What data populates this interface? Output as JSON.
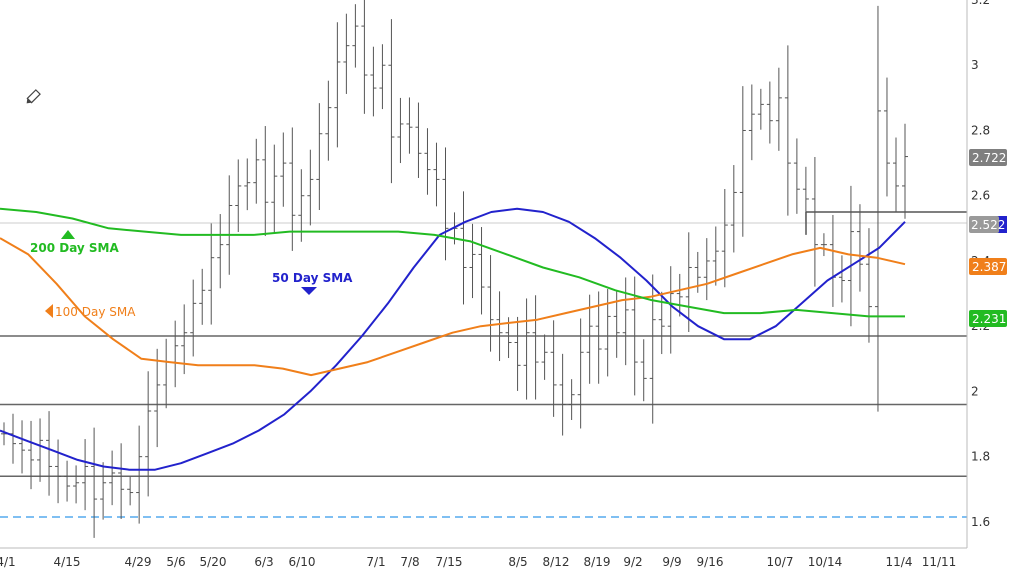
{
  "chart_data": {
    "type": "line",
    "title": "",
    "xlabel": "",
    "ylabel": "",
    "ylim": [
      1.52,
      3.2
    ],
    "y_ticks": [
      "1.6",
      "1.8",
      "2",
      "2.2",
      "2.4",
      "2.6",
      "2.8",
      "3",
      "3.2"
    ],
    "x_ticks": [
      "4/1",
      "4/15",
      "4/29",
      "5/6",
      "5/20",
      "6/3",
      "6/10",
      "7/1",
      "7/8",
      "7/15",
      "8/5",
      "8/12",
      "8/19",
      "9/2",
      "9/9",
      "9/16",
      "10/7",
      "10/14",
      "11/4",
      "11/11"
    ],
    "grid": false,
    "price_bars": {
      "style": "OHLC",
      "closes": [
        1.87,
        1.84,
        1.82,
        1.79,
        1.85,
        1.77,
        1.74,
        1.71,
        1.72,
        1.77,
        1.67,
        1.72,
        1.75,
        1.7,
        1.69,
        1.8,
        1.94,
        2.02,
        2.09,
        2.14,
        2.18,
        2.27,
        2.31,
        2.41,
        2.45,
        2.57,
        2.63,
        2.64,
        2.71,
        2.58,
        2.66,
        2.7,
        2.54,
        2.6,
        2.65,
        2.79,
        2.87,
        3.01,
        3.06,
        3.12,
        2.97,
        2.93,
        3.0,
        2.78,
        2.82,
        2.81,
        2.73,
        2.68,
        2.65,
        2.5,
        2.5,
        2.38,
        2.42,
        2.32,
        2.22,
        2.18,
        2.15,
        2.08,
        2.18,
        2.09,
        2.12,
        2.02,
        1.96,
        1.99,
        2.12,
        2.2,
        2.13,
        2.23,
        2.18,
        2.25,
        2.09,
        2.04,
        2.22,
        2.2,
        2.3,
        2.29,
        2.38,
        2.35,
        2.4,
        2.43,
        2.51,
        2.61,
        2.8,
        2.85,
        2.88,
        2.83,
        2.9,
        2.7,
        2.62,
        2.59,
        2.45,
        2.45,
        2.35,
        2.34,
        2.49,
        2.39,
        2.26,
        2.86,
        2.7,
        2.63,
        2.72
      ]
    },
    "series": [
      {
        "name": "50 Day SMA",
        "color": "#2222cc",
        "values": [
          1.88,
          1.85,
          1.82,
          1.79,
          1.77,
          1.76,
          1.76,
          1.78,
          1.81,
          1.84,
          1.88,
          1.93,
          2.0,
          2.08,
          2.17,
          2.27,
          2.38,
          2.48,
          2.52,
          2.55,
          2.56,
          2.55,
          2.52,
          2.47,
          2.41,
          2.34,
          2.26,
          2.2,
          2.16,
          2.16,
          2.2,
          2.27,
          2.34,
          2.39,
          2.44,
          2.52
        ]
      },
      {
        "name": "100 Day SMA",
        "color": "#f07f1a",
        "values": [
          2.47,
          2.42,
          2.33,
          2.23,
          2.16,
          2.1,
          2.09,
          2.08,
          2.08,
          2.08,
          2.07,
          2.05,
          2.07,
          2.09,
          2.12,
          2.15,
          2.18,
          2.2,
          2.21,
          2.22,
          2.24,
          2.26,
          2.28,
          2.29,
          2.31,
          2.33,
          2.36,
          2.39,
          2.42,
          2.44,
          2.42,
          2.41,
          2.39
        ]
      },
      {
        "name": "200 Day SMA",
        "color": "#22bb22",
        "values": [
          2.56,
          2.55,
          2.53,
          2.5,
          2.49,
          2.48,
          2.48,
          2.48,
          2.49,
          2.49,
          2.49,
          2.49,
          2.48,
          2.46,
          2.42,
          2.38,
          2.35,
          2.31,
          2.28,
          2.26,
          2.24,
          2.24,
          2.25,
          2.24,
          2.23,
          2.23
        ]
      }
    ],
    "value_badges": [
      "2.722",
      "2.522",
      "2.387",
      "2.231"
    ],
    "annotations": [
      "200 Day SMA",
      "50 Day SMA",
      "100  Day SMA"
    ],
    "horizontal_lines": [
      2.17,
      1.96,
      1.74,
      1.615,
      2.55
    ]
  }
}
